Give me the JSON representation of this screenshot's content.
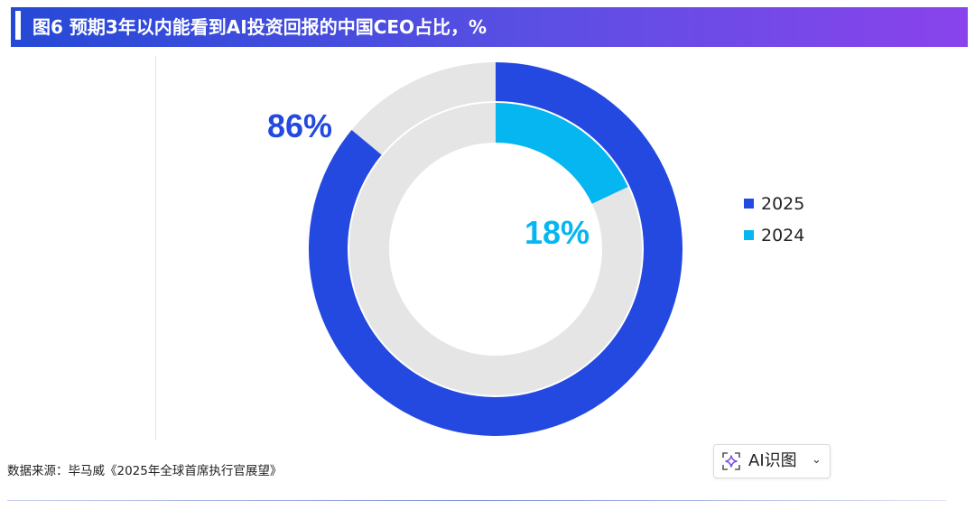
{
  "title": "图6 预期3年以内能看到AI投资回报的中国CEO占比，%",
  "source": "数据来源：毕马威《2025年全球首席执行官展望》",
  "ai_button": {
    "label": "AI识图",
    "icon": "sparkle-icon",
    "chevron": "chevron-down-icon"
  },
  "colors": {
    "series_2025": "#2349e0",
    "series_2024": "#06b6f0",
    "remainder": "#e5e5e5",
    "title_gradient_start": "#2549d6",
    "title_gradient_end": "#8a43ec"
  },
  "chart_data": {
    "type": "pie",
    "subtype": "nested-donut",
    "unit": "%",
    "title": "图6 预期3年以内能看到AI投资回报的中国CEO占比，%",
    "series": [
      {
        "name": "2025",
        "value": 86,
        "label": "86%",
        "ring": "outer"
      },
      {
        "name": "2024",
        "value": 18,
        "label": "18%",
        "ring": "inner"
      }
    ],
    "legend": {
      "position": "right",
      "entries": [
        "2025",
        "2024"
      ]
    }
  }
}
